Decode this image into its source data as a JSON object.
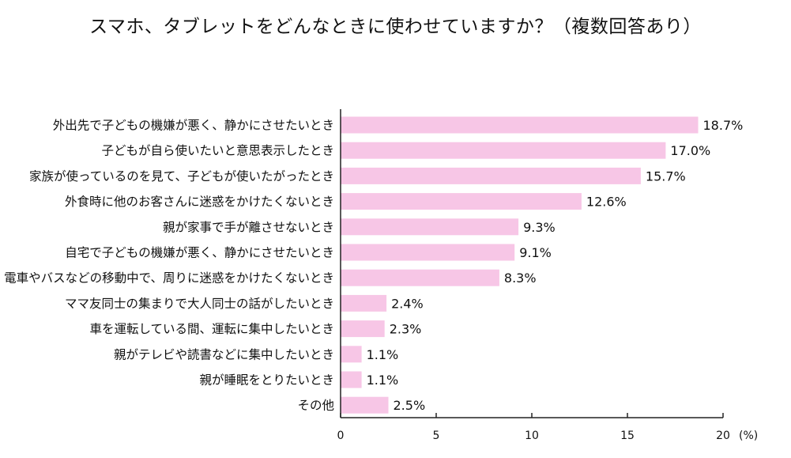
{
  "chart_data": {
    "type": "bar",
    "orientation": "horizontal",
    "title": "スマホ、タブレットをどんなときに使わせていますか？（複数回答あり）",
    "categories": [
      "外出先で子どもの機嫌が悪く、静かにさせたいとき",
      "子どもが自ら使いたいと意思表示したとき",
      "家族が使っているのを見て、子どもが使いたがったとき",
      "外食時に他のお客さんに迷惑をかけたくないとき",
      "親が家事で手が離させないとき",
      "自宅で子どもの機嫌が悪く、静かにさせたいとき",
      "電車やバスなどの移動中で、周りに迷惑をかけたくないとき",
      "ママ友同士の集まりで大人同士の話がしたいとき",
      "車を運転している間、運転に集中したいとき",
      "親がテレビや読書などに集中したいとき",
      "親が睡眠をとりたいとき",
      "その他"
    ],
    "values": [
      18.7,
      17.0,
      15.7,
      12.6,
      9.3,
      9.1,
      8.3,
      2.4,
      2.3,
      1.1,
      1.1,
      2.5
    ],
    "value_labels": [
      "18.7%",
      "17.0%",
      "15.7%",
      "12.6%",
      "9.3%",
      "9.1%",
      "8.3%",
      "2.4%",
      "2.3%",
      "1.1%",
      "1.1%",
      "2.5%"
    ],
    "xlim": [
      0,
      20
    ],
    "xticks": [
      "0",
      "5",
      "10",
      "15",
      "20"
    ],
    "xunit": "(%)",
    "bar_color": "#f7c6e6",
    "axis_color": "#222222",
    "grid": false,
    "legend": "none"
  }
}
